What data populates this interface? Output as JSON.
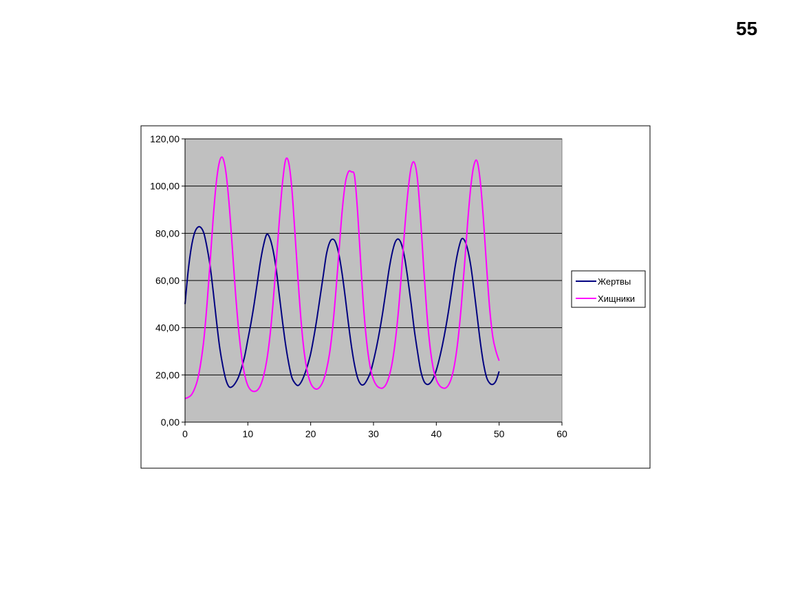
{
  "page": {
    "number": "55"
  },
  "chart_data": {
    "type": "line",
    "title": "",
    "xlabel": "",
    "ylabel": "",
    "xlim": [
      0,
      60
    ],
    "ylim": [
      0,
      120
    ],
    "x_ticks": [
      "0",
      "10",
      "20",
      "30",
      "40",
      "50",
      "60"
    ],
    "y_ticks": [
      "0,00",
      "20,00",
      "40,00",
      "60,00",
      "80,00",
      "100,00",
      "120,00"
    ],
    "grid": "horizontal",
    "plot_background": "#C0C0C0",
    "legend_position": "right",
    "series": [
      {
        "name": "Жертвы",
        "color": "#000080",
        "points": [
          [
            0,
            50
          ],
          [
            0.5,
            64
          ],
          [
            1,
            74
          ],
          [
            1.5,
            80
          ],
          [
            2,
            82.5
          ],
          [
            2.5,
            82.5
          ],
          [
            3,
            80
          ],
          [
            3.5,
            74
          ],
          [
            4,
            66
          ],
          [
            4.5,
            55
          ],
          [
            5,
            43
          ],
          [
            5.5,
            32
          ],
          [
            6,
            24
          ],
          [
            6.5,
            18
          ],
          [
            7,
            15
          ],
          [
            7.5,
            15
          ],
          [
            8,
            16.5
          ],
          [
            8.5,
            19
          ],
          [
            9,
            23
          ],
          [
            9.5,
            28
          ],
          [
            10,
            35
          ],
          [
            10.5,
            42
          ],
          [
            11,
            50
          ],
          [
            11.5,
            59
          ],
          [
            12,
            68
          ],
          [
            12.5,
            75
          ],
          [
            13,
            79.5
          ],
          [
            13.5,
            78
          ],
          [
            14,
            73
          ],
          [
            14.5,
            65
          ],
          [
            15,
            54
          ],
          [
            15.5,
            43
          ],
          [
            16,
            33
          ],
          [
            16.5,
            25
          ],
          [
            17,
            19
          ],
          [
            17.5,
            16.5
          ],
          [
            18,
            15.5
          ],
          [
            18.5,
            17
          ],
          [
            19,
            20
          ],
          [
            19.5,
            24
          ],
          [
            20,
            29
          ],
          [
            20.5,
            36
          ],
          [
            21,
            44
          ],
          [
            21.5,
            53
          ],
          [
            22,
            62
          ],
          [
            22.5,
            71
          ],
          [
            23,
            76
          ],
          [
            23.5,
            77.5
          ],
          [
            24,
            76
          ],
          [
            24.5,
            71
          ],
          [
            25,
            63
          ],
          [
            25.5,
            53
          ],
          [
            26,
            42
          ],
          [
            26.5,
            32
          ],
          [
            27,
            24
          ],
          [
            27.5,
            18.5
          ],
          [
            28,
            16
          ],
          [
            28.5,
            16
          ],
          [
            29,
            18
          ],
          [
            29.5,
            21
          ],
          [
            30,
            26
          ],
          [
            30.5,
            32
          ],
          [
            31,
            39
          ],
          [
            31.5,
            47
          ],
          [
            32,
            56
          ],
          [
            32.5,
            65
          ],
          [
            33,
            72
          ],
          [
            33.5,
            76.5
          ],
          [
            34,
            77.5
          ],
          [
            34.5,
            75
          ],
          [
            35,
            69
          ],
          [
            35.5,
            60
          ],
          [
            36,
            50
          ],
          [
            36.5,
            39
          ],
          [
            37,
            30
          ],
          [
            37.5,
            22
          ],
          [
            38,
            17.5
          ],
          [
            38.5,
            16
          ],
          [
            39,
            16.5
          ],
          [
            39.5,
            18.5
          ],
          [
            40,
            22
          ],
          [
            40.5,
            27
          ],
          [
            41,
            33
          ],
          [
            41.5,
            40
          ],
          [
            42,
            48
          ],
          [
            42.5,
            57
          ],
          [
            43,
            66
          ],
          [
            43.5,
            73
          ],
          [
            44,
            77.5
          ],
          [
            44.5,
            77
          ],
          [
            45,
            73
          ],
          [
            45.5,
            66
          ],
          [
            46,
            56
          ],
          [
            46.5,
            45
          ],
          [
            47,
            34
          ],
          [
            47.5,
            25
          ],
          [
            48,
            19
          ],
          [
            48.5,
            16.5
          ],
          [
            49,
            16
          ],
          [
            49.5,
            17.5
          ],
          [
            50,
            21.5
          ]
        ]
      },
      {
        "name": "Хищники",
        "color": "#FF00FF",
        "points": [
          [
            0,
            10
          ],
          [
            0.5,
            10.5
          ],
          [
            1,
            11.5
          ],
          [
            1.5,
            14
          ],
          [
            2,
            18
          ],
          [
            2.5,
            25
          ],
          [
            3,
            35
          ],
          [
            3.5,
            50
          ],
          [
            4,
            68
          ],
          [
            4.5,
            87
          ],
          [
            5,
            102
          ],
          [
            5.5,
            110.5
          ],
          [
            6,
            112
          ],
          [
            6.5,
            106
          ],
          [
            7,
            93
          ],
          [
            7.5,
            75
          ],
          [
            8,
            56
          ],
          [
            8.5,
            40
          ],
          [
            9,
            28
          ],
          [
            9.5,
            20
          ],
          [
            10,
            15.5
          ],
          [
            10.5,
            13.5
          ],
          [
            11,
            13
          ],
          [
            11.5,
            13.5
          ],
          [
            12,
            15.5
          ],
          [
            12.5,
            19.5
          ],
          [
            13,
            26
          ],
          [
            13.5,
            36
          ],
          [
            14,
            50
          ],
          [
            14.5,
            67
          ],
          [
            15,
            85
          ],
          [
            15.5,
            101
          ],
          [
            16,
            111
          ],
          [
            16.5,
            110
          ],
          [
            17,
            99
          ],
          [
            17.5,
            80
          ],
          [
            18,
            60
          ],
          [
            18.5,
            42
          ],
          [
            19,
            29
          ],
          [
            19.5,
            21
          ],
          [
            20,
            16.5
          ],
          [
            20.5,
            14.5
          ],
          [
            21,
            14
          ],
          [
            21.5,
            15
          ],
          [
            22,
            17.5
          ],
          [
            22.5,
            22
          ],
          [
            23,
            29
          ],
          [
            23.5,
            40
          ],
          [
            24,
            55
          ],
          [
            24.5,
            72
          ],
          [
            25,
            89
          ],
          [
            25.5,
            101
          ],
          [
            26,
            106
          ],
          [
            26.5,
            106
          ],
          [
            27,
            104
          ],
          [
            27.5,
            88
          ],
          [
            28,
            66
          ],
          [
            28.5,
            46
          ],
          [
            29,
            32
          ],
          [
            29.5,
            23
          ],
          [
            30,
            18
          ],
          [
            30.5,
            15.5
          ],
          [
            31,
            14.5
          ],
          [
            31.5,
            14.5
          ],
          [
            32,
            16
          ],
          [
            32.5,
            19.5
          ],
          [
            33,
            25.5
          ],
          [
            33.5,
            35
          ],
          [
            34,
            48
          ],
          [
            34.5,
            65
          ],
          [
            35,
            83
          ],
          [
            35.5,
            98
          ],
          [
            36,
            108
          ],
          [
            36.5,
            110
          ],
          [
            37,
            103
          ],
          [
            37.5,
            86
          ],
          [
            38,
            65
          ],
          [
            38.5,
            46
          ],
          [
            39,
            32
          ],
          [
            39.5,
            23
          ],
          [
            40,
            18
          ],
          [
            40.5,
            15.5
          ],
          [
            41,
            14.5
          ],
          [
            41.5,
            14.5
          ],
          [
            42,
            16
          ],
          [
            42.5,
            19.5
          ],
          [
            43,
            26
          ],
          [
            43.5,
            36
          ],
          [
            44,
            50
          ],
          [
            44.5,
            67
          ],
          [
            45,
            85
          ],
          [
            45.5,
            100
          ],
          [
            46,
            109
          ],
          [
            46.5,
            110.5
          ],
          [
            47,
            102
          ],
          [
            47.5,
            86
          ],
          [
            48,
            66
          ],
          [
            48.5,
            48
          ],
          [
            49,
            36
          ],
          [
            49.5,
            30
          ],
          [
            50,
            26
          ]
        ]
      }
    ]
  }
}
